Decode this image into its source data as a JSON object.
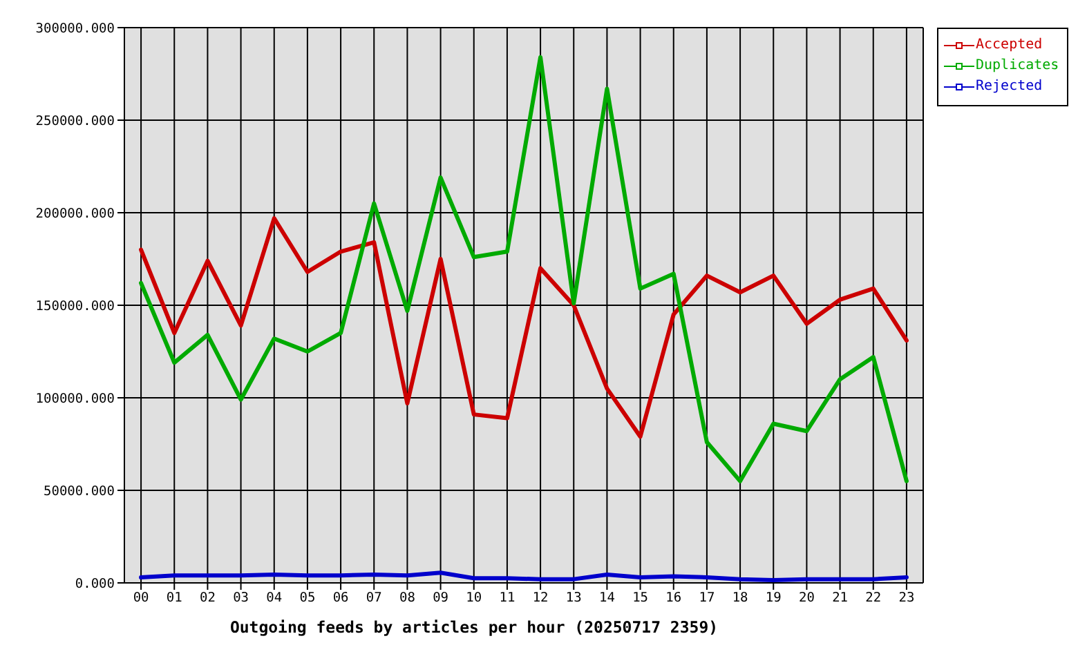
{
  "chart_data": {
    "type": "line",
    "xlabel": "Outgoing feeds by articles per hour (20250717 2359)",
    "categories": [
      "00",
      "01",
      "02",
      "03",
      "04",
      "05",
      "06",
      "07",
      "08",
      "09",
      "10",
      "11",
      "12",
      "13",
      "14",
      "15",
      "16",
      "17",
      "18",
      "19",
      "20",
      "21",
      "22",
      "23"
    ],
    "series": [
      {
        "name": "Accepted",
        "color": "#cc0000",
        "values": [
          180000,
          135000,
          174000,
          139000,
          197000,
          168000,
          179000,
          184000,
          97000,
          175000,
          91000,
          89000,
          170000,
          150000,
          105000,
          79000,
          145000,
          166000,
          157000,
          166000,
          140000,
          153000,
          159000,
          131000
        ]
      },
      {
        "name": "Duplicates",
        "color": "#00aa00",
        "values": [
          162000,
          119000,
          134000,
          99000,
          132000,
          125000,
          135000,
          205000,
          147000,
          219000,
          176000,
          179000,
          284000,
          151000,
          267000,
          159000,
          167000,
          76000,
          55000,
          86000,
          82000,
          110000,
          122000,
          55000
        ]
      },
      {
        "name": "Rejected",
        "color": "#0000cc",
        "values": [
          3000,
          4000,
          4000,
          4000,
          4500,
          4000,
          4000,
          4500,
          4000,
          5500,
          2500,
          2500,
          2000,
          2000,
          4500,
          3000,
          3500,
          3000,
          2000,
          1500,
          2000,
          2000,
          2000,
          3000
        ]
      }
    ],
    "ylim": [
      0,
      300000
    ],
    "yticks": [
      {
        "value": 0,
        "label": "0.000"
      },
      {
        "value": 50000,
        "label": "50000.000"
      },
      {
        "value": 100000,
        "label": "100000.000"
      },
      {
        "value": 150000,
        "label": "150000.000"
      },
      {
        "value": 200000,
        "label": "200000.000"
      },
      {
        "value": 250000,
        "label": "250000.000"
      },
      {
        "value": 300000,
        "label": "300000.000"
      }
    ],
    "grid": true,
    "legend": "top right",
    "marker": "none",
    "line_style": "solid"
  }
}
